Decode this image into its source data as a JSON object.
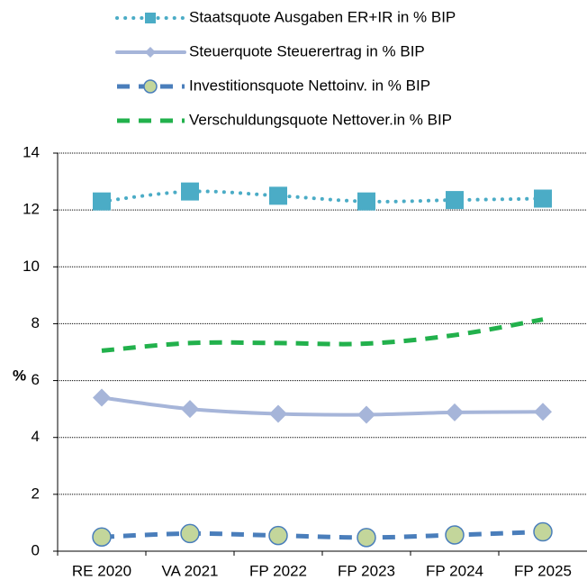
{
  "chart_data": {
    "type": "line",
    "ylabel": "%",
    "categories": [
      "RE 2020",
      "VA 2021",
      "FP 2022",
      "FP 2023",
      "FP 2024",
      "FP 2025"
    ],
    "series": [
      {
        "name": "Staatsquote Ausgaben ER+IR in % BIP",
        "color": "#4bacc6",
        "line_style": "dotted",
        "marker": "square",
        "values": [
          12.3,
          12.65,
          12.5,
          12.3,
          12.35,
          12.4
        ]
      },
      {
        "name": "Steuerquote Steuerertrag in % BIP",
        "color": "#a6b5d9",
        "line_style": "solid",
        "marker": "diamond",
        "values": [
          5.4,
          5.0,
          4.83,
          4.8,
          4.88,
          4.9
        ]
      },
      {
        "name": "Investitionsquote Nettoinv. in % BIP",
        "color": "#4a7ebb",
        "line_style": "dashed",
        "marker": "circle",
        "values": [
          0.5,
          0.62,
          0.55,
          0.48,
          0.57,
          0.68
        ]
      },
      {
        "name": "Verschuldungsquote Nettover.in % BIP",
        "color": "#22b14c",
        "line_style": "dashed",
        "marker": "none",
        "values": [
          7.05,
          7.32,
          7.32,
          7.3,
          7.6,
          8.15
        ]
      }
    ],
    "ylim": [
      0,
      14
    ],
    "yticks": [
      0,
      2,
      4,
      6,
      8,
      10,
      12,
      14
    ],
    "grid": true,
    "legend": "top"
  }
}
